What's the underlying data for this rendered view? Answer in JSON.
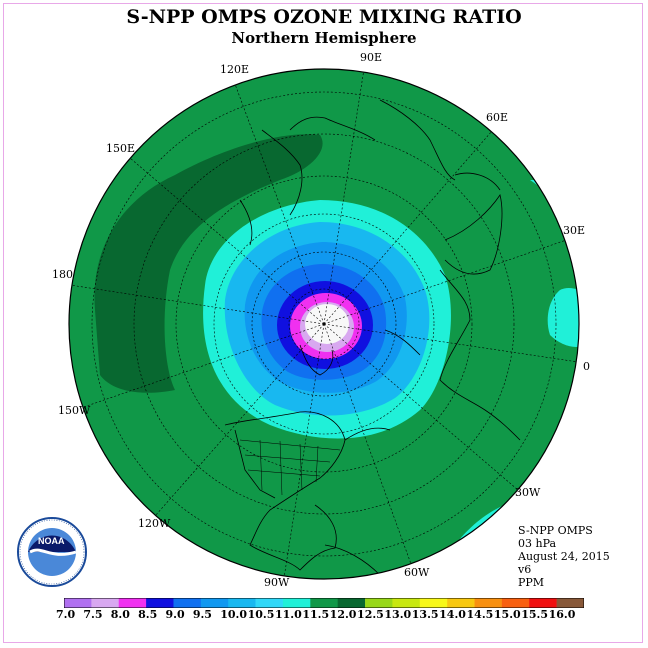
{
  "title": "S-NPP OMPS OZONE MIXING RATIO",
  "subtitle": "Northern Hemisphere",
  "longitude_labels": {
    "lon_120e": "120E",
    "lon_90e": "90E",
    "lon_60e": "60E",
    "lon_150e": "150E",
    "lon_30e": "30E",
    "lon_180": "180",
    "lon_0": "0",
    "lon_150w": "150W",
    "lon_30w": "30W",
    "lon_120w": "120W",
    "lon_60w": "60W",
    "lon_90w": "90W"
  },
  "info": {
    "instrument": "S-NPP OMPS",
    "level": "03 hPa",
    "date": "August 24, 2015",
    "version": "v6",
    "units": "PPM"
  },
  "colorbar": {
    "ticks": [
      "7.0",
      "7.5",
      "8.0",
      "8.5",
      "9.0",
      "9.5",
      "10.0",
      "10.5",
      "11.0",
      "11.5",
      "12.0",
      "12.5",
      "13.0",
      "13.5",
      "14.0",
      "14.5",
      "15.0",
      "15.5",
      "16.0"
    ],
    "colors": [
      "#b070f0",
      "#d8a8f0",
      "#f030f0",
      "#1010e0",
      "#1070f0",
      "#1098f0",
      "#18b8f0",
      "#30d8f8",
      "#20f0d8",
      "#109848",
      "#086830",
      "#98d818",
      "#c8e810",
      "#f8f818",
      "#f8c810",
      "#f89010",
      "#f86010",
      "#f01010",
      "#885838"
    ]
  },
  "map_colors": {
    "ocean_green": "#109848",
    "dark_green": "#086830",
    "cyan": "#20f0d8",
    "sky": "#18b8f0",
    "azure": "#1098f0",
    "blue": "#1070f0",
    "navy": "#1010e0",
    "magenta": "#f030f0",
    "light_purple": "#d8a8f0",
    "pole_white": "#f8f8f8"
  },
  "logo_text": "NOAA"
}
